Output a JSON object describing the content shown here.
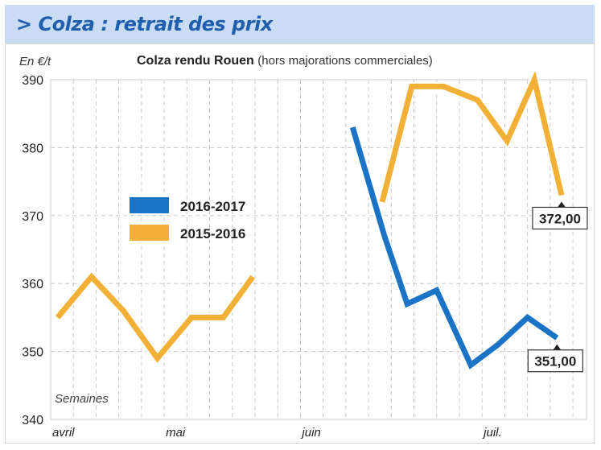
{
  "header": {
    "title": "> Colza : retrait des prix"
  },
  "chart_data": {
    "type": "line",
    "title": "Colza rendu Rouen",
    "subtitle": "(hors majorations commerciales)",
    "ylabel": "En €/t",
    "xlabel": "Semaines",
    "ylim": [
      340,
      390
    ],
    "yticks": [
      340,
      350,
      360,
      370,
      380,
      390
    ],
    "grid": true,
    "month_labels": [
      {
        "label": "avril",
        "week": 0
      },
      {
        "label": "mai",
        "week": 5
      },
      {
        "label": "juin",
        "week": 11
      },
      {
        "label": "juil.",
        "week": 19
      }
    ],
    "legend_position": "left-middle",
    "series": [
      {
        "name": "2016-2017",
        "color": "#1a73c4",
        "points": [
          {
            "week": 13.3,
            "value": 383
          },
          {
            "week": 14.7,
            "value": 367
          },
          {
            "week": 15.7,
            "value": 357
          },
          {
            "week": 17.0,
            "value": 359
          },
          {
            "week": 18.5,
            "value": 348
          },
          {
            "week": 19.7,
            "value": 351
          },
          {
            "week": 21.0,
            "value": 355
          },
          {
            "week": 22.3,
            "value": 352
          }
        ]
      },
      {
        "name": "2015-2016",
        "color": "#f2b036",
        "points": [
          {
            "week": 0.3,
            "value": 355
          },
          {
            "week": 1.8,
            "value": 361
          },
          {
            "week": 3.2,
            "value": 356
          },
          {
            "week": 4.7,
            "value": 349
          },
          {
            "week": 6.2,
            "value": 355
          },
          {
            "week": 7.6,
            "value": 355
          },
          {
            "week": 8.9,
            "value": 361
          },
          {
            "week": 14.6,
            "value": 372
          },
          {
            "week": 15.9,
            "value": 389
          },
          {
            "week": 17.3,
            "value": 389
          },
          {
            "week": 18.8,
            "value": 387
          },
          {
            "week": 20.1,
            "value": 381
          },
          {
            "week": 21.3,
            "value": 390
          },
          {
            "week": 22.5,
            "value": 373
          }
        ]
      }
    ],
    "annotations": [
      {
        "series": "2015-2016",
        "label": "372,00"
      },
      {
        "series": "2016-2017",
        "label": "351,00"
      }
    ]
  }
}
